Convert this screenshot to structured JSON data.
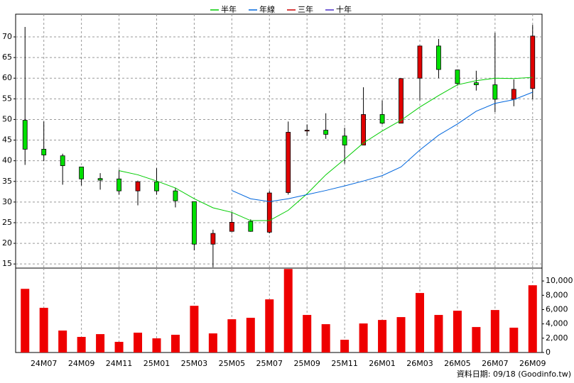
{
  "chart_data": {
    "type": "candlestick",
    "categories": [
      null,
      "24M07",
      null,
      "24M09",
      null,
      "24M11",
      null,
      "25M01",
      null,
      "25M03",
      null,
      "25M05",
      null,
      "25M07",
      null,
      "25M09",
      null,
      "25M11",
      null,
      "26M01",
      null,
      "26M03",
      null,
      "26M05",
      null,
      "26M07",
      null,
      "26M09"
    ],
    "open": [
      49.8,
      42.8,
      41.2,
      38.5,
      35.7,
      35.6,
      32.7,
      34.9,
      32.7,
      30.1,
      19.8,
      22.9,
      25.3,
      22.7,
      32.3,
      47.2,
      47.4,
      46.0,
      43.8,
      51.2,
      49.1,
      60.0,
      67.8,
      62.0,
      58.9,
      58.4,
      54.9,
      57.5
    ],
    "high": [
      72.4,
      49.5,
      41.7,
      38.5,
      37.0,
      37.8,
      35.2,
      38.2,
      33.5,
      30.1,
      23.3,
      27.5,
      25.8,
      32.7,
      49.5,
      48.8,
      51.5,
      48.0,
      57.8,
      54.6,
      60.0,
      67.8,
      69.5,
      62.0,
      61.8,
      71.0,
      59.7,
      72.9
    ],
    "low": [
      39.0,
      39.9,
      34.2,
      34.0,
      33.0,
      31.8,
      29.2,
      31.8,
      28.7,
      18.3,
      14.2,
      22.9,
      22.8,
      22.4,
      31.8,
      46.0,
      45.3,
      39.3,
      43.8,
      48.8,
      49.1,
      54.6,
      60.0,
      58.2,
      57.0,
      51.8,
      53.2,
      54.9
    ],
    "close": [
      42.8,
      41.4,
      38.8,
      35.6,
      35.3,
      32.7,
      34.9,
      32.7,
      30.3,
      19.8,
      22.4,
      25.1,
      22.9,
      32.2,
      46.9,
      47.4,
      46.4,
      43.8,
      51.2,
      49.1,
      59.9,
      67.8,
      62.1,
      58.7,
      58.4,
      54.9,
      57.3,
      70.2
    ],
    "up_color": "#e00000",
    "down_color": "#00e000",
    "series": [
      {
        "name": "半年",
        "color": "#00cc00",
        "values": [
          null,
          null,
          null,
          null,
          null,
          37.6,
          36.6,
          35.1,
          33.4,
          30.8,
          28.6,
          27.5,
          25.5,
          25.5,
          28.0,
          32.0,
          36.6,
          40.4,
          44.3,
          47.2,
          49.8,
          53.0,
          55.8,
          58.4,
          59.4,
          60.0,
          59.9,
          60.2
        ]
      },
      {
        "name": "年線",
        "color": "#0066dd",
        "values": [
          null,
          null,
          null,
          null,
          null,
          null,
          null,
          null,
          null,
          null,
          null,
          32.8,
          30.8,
          30.1,
          30.8,
          31.8,
          32.8,
          33.9,
          35.1,
          36.4,
          38.5,
          42.6,
          46.2,
          48.9,
          52.0,
          53.9,
          54.8,
          56.6
        ]
      },
      {
        "name": "三年",
        "color": "#cc0000",
        "values": [
          null,
          null,
          null,
          null,
          null,
          null,
          null,
          null,
          null,
          null,
          null,
          null,
          null,
          null,
          null,
          null,
          null,
          null,
          null,
          null,
          null,
          null,
          null,
          null,
          null,
          null,
          null,
          null
        ]
      },
      {
        "name": "十年",
        "color": "#4b2fc8",
        "values": [
          null,
          null,
          null,
          null,
          null,
          null,
          null,
          null,
          null,
          null,
          null,
          null,
          null,
          null,
          null,
          null,
          null,
          null,
          null,
          null,
          null,
          null,
          null,
          null,
          null,
          null,
          null,
          null
        ]
      }
    ],
    "ylim": [
      14,
      75.5
    ],
    "yticks": [
      15,
      20,
      25,
      30,
      35,
      40,
      45,
      50,
      55,
      60,
      65,
      70
    ],
    "grid": true,
    "legend": "top",
    "volume": {
      "color": "#ee0000",
      "values": [
        8900,
        6250,
        3070,
        2180,
        2570,
        1490,
        2770,
        1980,
        2480,
        6530,
        2670,
        4650,
        4850,
        7430,
        11680,
        5250,
        3960,
        1780,
        4060,
        4550,
        4950,
        8320,
        5250,
        5840,
        3560,
        5940,
        3470,
        9400
      ],
      "ylim": [
        0,
        11800
      ],
      "yticks": [
        0,
        {
          "value": 2000,
          "label": "2,000"
        },
        {
          "value": 4000,
          "label": "4,000"
        },
        {
          "value": 6000,
          "label": "6,000"
        },
        {
          "value": 8000,
          "label": "8,000"
        },
        {
          "value": 10000,
          "label": "10,000"
        }
      ]
    },
    "footer": "資料日期: 09/18 (Goodinfo.tw)"
  }
}
